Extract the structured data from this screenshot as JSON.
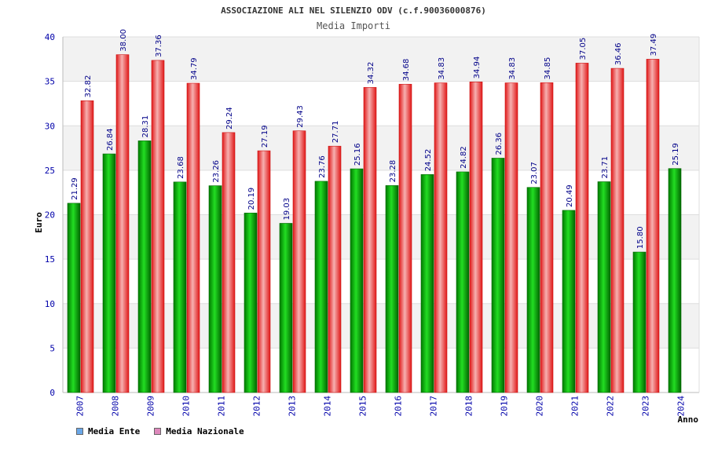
{
  "chart_data": {
    "type": "bar",
    "title": "ASSOCIAZIONE ALI NEL SILENZIO ODV (c.f.90036000876)",
    "subtitle": "Media Importi",
    "xlabel": "Anno",
    "ylabel": "Euro",
    "ylim": [
      0,
      40
    ],
    "ytick_step": 5,
    "grid": true,
    "legend_placement": "bottom-left",
    "categories": [
      "2007",
      "2008",
      "2009",
      "2010",
      "2011",
      "2012",
      "2013",
      "2014",
      "2015",
      "2016",
      "2017",
      "2018",
      "2019",
      "2020",
      "2021",
      "2022",
      "2023",
      "2024"
    ],
    "series": [
      {
        "name": "Media Ente",
        "color": "#00aa00",
        "legend_color": "#6aa7e8",
        "values": [
          21.29,
          26.84,
          28.31,
          23.68,
          23.26,
          20.19,
          19.03,
          23.76,
          25.16,
          23.28,
          24.52,
          24.82,
          26.36,
          23.07,
          20.49,
          23.71,
          15.8,
          25.19
        ],
        "labels": [
          "21.29",
          "26.84",
          "28.31",
          "23.68",
          "23.26",
          "20.19",
          "19.03",
          "23.76",
          "25.16",
          "23.28",
          "24.52",
          "24.82",
          "26.36",
          "23.07",
          "20.49",
          "23.71",
          "15.80",
          "25.19"
        ]
      },
      {
        "name": "Media Nazionale",
        "color": "#ee2222",
        "legend_color": "#dd88bb",
        "values": [
          32.82,
          38.0,
          37.36,
          34.79,
          29.24,
          27.19,
          29.43,
          27.71,
          34.32,
          34.68,
          34.83,
          34.94,
          34.83,
          34.85,
          37.05,
          36.46,
          37.49,
          null
        ],
        "labels": [
          "32.82",
          "38.00",
          "37.36",
          "34.79",
          "29.24",
          "27.19",
          "29.43",
          "27.71",
          "34.32",
          "34.68",
          "34.83",
          "34.94",
          "34.83",
          "34.85",
          "37.05",
          "36.46",
          "37.49",
          ""
        ]
      }
    ]
  }
}
